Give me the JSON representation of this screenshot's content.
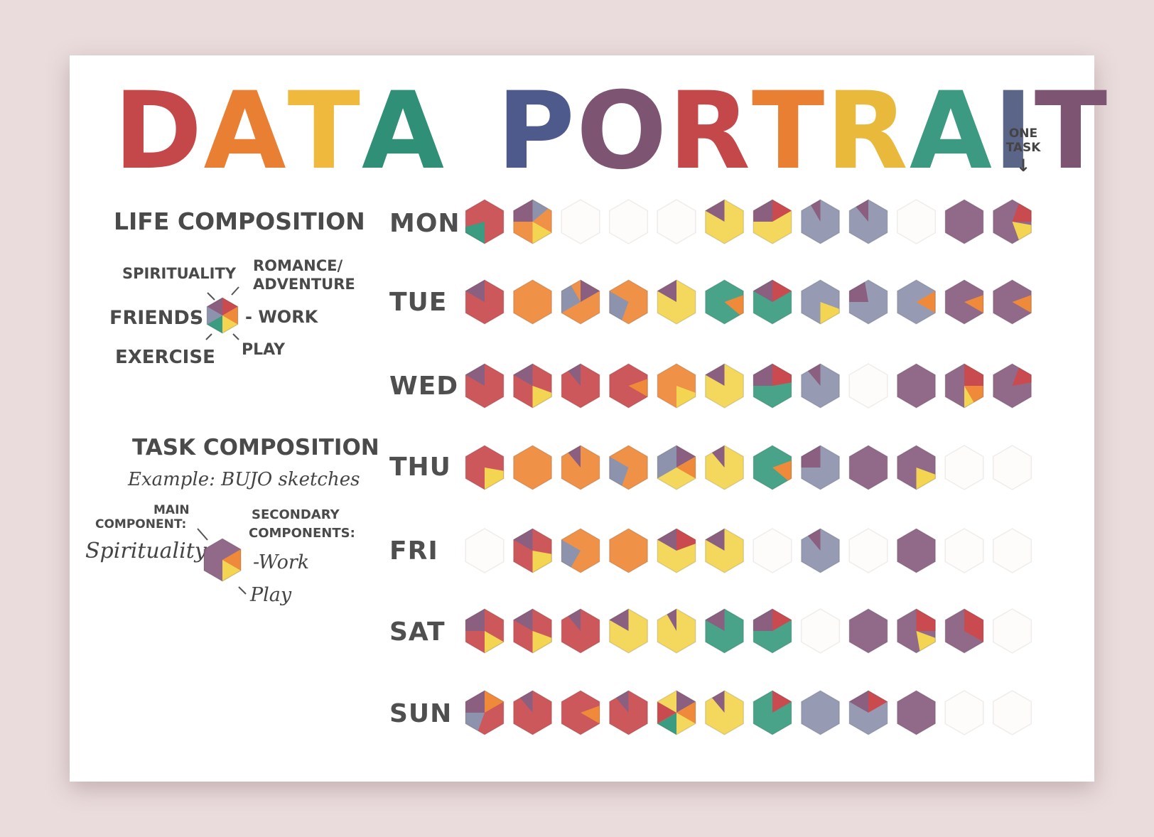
{
  "title": {
    "words": [
      {
        "text": "DATA",
        "colors": [
          "#c4474a",
          "#e97f33",
          "#eeb93c",
          "#2f8f77"
        ]
      },
      {
        "text": "PORTRAIT",
        "colors": [
          "#4e5a8c",
          "#7d5572",
          "#c4474a",
          "#e97f33",
          "#e8b93a",
          "#3c9a82",
          "#5b6588",
          "#7d5572"
        ]
      }
    ]
  },
  "categories": {
    "romance": {
      "label": "ROMANCE/ ADVENTURE",
      "color": "#c94b4f"
    },
    "work": {
      "label": "WORK",
      "color": "#ee8a3a"
    },
    "play": {
      "label": "PLAY",
      "color": "#f3d551"
    },
    "exercise": {
      "label": "EXERCISE",
      "color": "#3a9c80"
    },
    "friends": {
      "label": "FRIENDS",
      "color": "#8e93ad"
    },
    "spirituality": {
      "label": "SPIRITUALITY",
      "color": "#8a5f80"
    }
  },
  "life_composition": {
    "heading": "LIFE COMPOSITION",
    "labels": {
      "spirituality": "SPIRITUALITY",
      "romance": "ROMANCE/",
      "romance2": "ADVENTURE",
      "friends": "FRIENDS -",
      "work": "- WORK",
      "exercise": "EXERCISE",
      "play": "PLAY"
    }
  },
  "task_composition": {
    "heading": "TASK COMPOSITION",
    "example": "Example: BUJO sketches",
    "main_label_1": "MAIN",
    "main_label_2": "COMPONENT:",
    "main_value": "Spirituality",
    "secondary_label_1": "SECONDARY",
    "secondary_label_2": "COMPONENTS:",
    "secondary_1": "-Work",
    "secondary_2": "Play"
  },
  "one_task_label": "ONE TASK",
  "one_task_arrow": "↓",
  "days": [
    "MON",
    "TUE",
    "WED",
    "THU",
    "FRI",
    "SAT",
    "SUN"
  ],
  "grid": [
    [
      {
        "base": "romance",
        "wedges": [
          {
            "cat": "exercise",
            "start": 180,
            "end": 255
          }
        ]
      },
      {
        "base": "work",
        "wedges": [
          {
            "cat": "spirituality",
            "start": 270,
            "end": 360
          },
          {
            "cat": "friends",
            "start": 0,
            "end": 50
          },
          {
            "cat": "play",
            "start": 120,
            "end": 180
          }
        ]
      },
      null,
      null,
      null,
      {
        "base": "play",
        "wedges": [
          {
            "cat": "spirituality",
            "start": 300,
            "end": 360
          }
        ]
      },
      {
        "base": "play",
        "wedges": [
          {
            "cat": "spirituality",
            "start": 270,
            "end": 360
          },
          {
            "cat": "romance",
            "start": 0,
            "end": 60
          }
        ]
      },
      {
        "base": "friends",
        "wedges": [
          {
            "cat": "spirituality",
            "start": 330,
            "end": 360
          }
        ]
      },
      {
        "base": "friends",
        "wedges": [
          {
            "cat": "spirituality",
            "start": 320,
            "end": 360
          }
        ]
      },
      null,
      {
        "base": "spirituality",
        "wedges": []
      },
      {
        "base": "spirituality",
        "wedges": [
          {
            "cat": "romance",
            "start": 20,
            "end": 90
          },
          {
            "cat": "play",
            "start": 100,
            "end": 160
          }
        ]
      }
    ],
    [
      {
        "base": "romance",
        "wedges": [
          {
            "cat": "spirituality",
            "start": 300,
            "end": 360
          }
        ]
      },
      {
        "base": "work",
        "wedges": []
      },
      {
        "base": "work",
        "wedges": [
          {
            "cat": "spirituality",
            "start": 0,
            "end": 60
          },
          {
            "cat": "friends",
            "start": 240,
            "end": 330
          }
        ]
      },
      {
        "base": "work",
        "wedges": [
          {
            "cat": "friends",
            "start": 200,
            "end": 300
          }
        ]
      },
      {
        "base": "play",
        "wedges": [
          {
            "cat": "spirituality",
            "start": 300,
            "end": 360
          }
        ]
      },
      {
        "base": "exercise",
        "wedges": [
          {
            "cat": "work",
            "start": 70,
            "end": 130
          }
        ]
      },
      {
        "base": "exercise",
        "wedges": [
          {
            "cat": "spirituality",
            "start": 300,
            "end": 360
          },
          {
            "cat": "romance",
            "start": 0,
            "end": 60
          }
        ]
      },
      {
        "base": "friends",
        "wedges": [
          {
            "cat": "play",
            "start": 110,
            "end": 180
          }
        ]
      },
      {
        "base": "friends",
        "wedges": [
          {
            "cat": "spirituality",
            "start": 270,
            "end": 350
          }
        ]
      },
      {
        "base": "friends",
        "wedges": [
          {
            "cat": "work",
            "start": 60,
            "end": 120
          }
        ]
      },
      {
        "base": "spirituality",
        "wedges": [
          {
            "cat": "work",
            "start": 70,
            "end": 120
          }
        ]
      },
      {
        "base": "spirituality",
        "wedges": [
          {
            "cat": "work",
            "start": 70,
            "end": 120
          }
        ]
      }
    ],
    [
      {
        "base": "romance",
        "wedges": [
          {
            "cat": "spirituality",
            "start": 300,
            "end": 360
          }
        ]
      },
      {
        "base": "romance",
        "wedges": [
          {
            "cat": "spirituality",
            "start": 300,
            "end": 360
          },
          {
            "cat": "play",
            "start": 110,
            "end": 180
          }
        ]
      },
      {
        "base": "romance",
        "wedges": [
          {
            "cat": "spirituality",
            "start": 320,
            "end": 360
          }
        ]
      },
      {
        "base": "romance",
        "wedges": [
          {
            "cat": "work",
            "start": 70,
            "end": 120
          }
        ]
      },
      {
        "base": "work",
        "wedges": [
          {
            "cat": "play",
            "start": 110,
            "end": 180
          }
        ]
      },
      {
        "base": "play",
        "wedges": [
          {
            "cat": "spirituality",
            "start": 300,
            "end": 360
          }
        ]
      },
      {
        "base": "exercise",
        "wedges": [
          {
            "cat": "spirituality",
            "start": 270,
            "end": 360
          },
          {
            "cat": "romance",
            "start": 0,
            "end": 80
          }
        ]
      },
      {
        "base": "friends",
        "wedges": [
          {
            "cat": "spirituality",
            "start": 320,
            "end": 360
          }
        ]
      },
      null,
      {
        "base": "spirituality",
        "wedges": []
      },
      {
        "base": "spirituality",
        "wedges": [
          {
            "cat": "romance",
            "start": 0,
            "end": 90
          },
          {
            "cat": "work",
            "start": 90,
            "end": 150
          },
          {
            "cat": "play",
            "start": 150,
            "end": 180
          }
        ]
      },
      {
        "base": "spirituality",
        "wedges": [
          {
            "cat": "romance",
            "start": 20,
            "end": 80
          }
        ]
      }
    ],
    [
      {
        "base": "romance",
        "wedges": [
          {
            "cat": "play",
            "start": 100,
            "end": 180
          }
        ]
      },
      {
        "base": "work",
        "wedges": []
      },
      {
        "base": "work",
        "wedges": [
          {
            "cat": "spirituality",
            "start": 320,
            "end": 360
          }
        ]
      },
      {
        "base": "work",
        "wedges": [
          {
            "cat": "friends",
            "start": 200,
            "end": 300
          }
        ]
      },
      {
        "base": "play",
        "wedges": [
          {
            "cat": "friends",
            "start": 240,
            "end": 360
          },
          {
            "cat": "spirituality",
            "start": 0,
            "end": 60
          },
          {
            "cat": "work",
            "start": 60,
            "end": 120
          }
        ]
      },
      {
        "base": "play",
        "wedges": [
          {
            "cat": "spirituality",
            "start": 320,
            "end": 360
          }
        ]
      },
      {
        "base": "exercise",
        "wedges": [
          {
            "cat": "work",
            "start": 70,
            "end": 130
          }
        ]
      },
      {
        "base": "friends",
        "wedges": [
          {
            "cat": "spirituality",
            "start": 270,
            "end": 360
          }
        ]
      },
      {
        "base": "spirituality",
        "wedges": []
      },
      {
        "base": "spirituality",
        "wedges": [
          {
            "cat": "play",
            "start": 110,
            "end": 180
          }
        ]
      },
      null,
      null
    ],
    [
      null,
      {
        "base": "romance",
        "wedges": [
          {
            "cat": "spirituality",
            "start": 300,
            "end": 360
          },
          {
            "cat": "play",
            "start": 100,
            "end": 180
          }
        ]
      },
      {
        "base": "work",
        "wedges": [
          {
            "cat": "friends",
            "start": 210,
            "end": 300
          }
        ]
      },
      {
        "base": "work",
        "wedges": []
      },
      {
        "base": "play",
        "wedges": [
          {
            "cat": "spirituality",
            "start": 300,
            "end": 360
          },
          {
            "cat": "romance",
            "start": 0,
            "end": 70
          }
        ]
      },
      {
        "base": "play",
        "wedges": [
          {
            "cat": "spirituality",
            "start": 300,
            "end": 360
          }
        ]
      },
      null,
      {
        "base": "friends",
        "wedges": [
          {
            "cat": "spirituality",
            "start": 320,
            "end": 360
          }
        ]
      },
      null,
      {
        "base": "spirituality",
        "wedges": []
      },
      null,
      null
    ],
    [
      {
        "base": "romance",
        "wedges": [
          {
            "cat": "spirituality",
            "start": 270,
            "end": 360
          },
          {
            "cat": "play",
            "start": 120,
            "end": 180
          }
        ]
      },
      {
        "base": "romance",
        "wedges": [
          {
            "cat": "spirituality",
            "start": 300,
            "end": 360
          },
          {
            "cat": "play",
            "start": 110,
            "end": 180
          }
        ]
      },
      {
        "base": "romance",
        "wedges": [
          {
            "cat": "spirituality",
            "start": 320,
            "end": 360
          }
        ]
      },
      {
        "base": "play",
        "wedges": [
          {
            "cat": "spirituality",
            "start": 300,
            "end": 360
          }
        ]
      },
      {
        "base": "play",
        "wedges": [
          {
            "cat": "spirituality",
            "start": 330,
            "end": 360
          }
        ]
      },
      {
        "base": "exercise",
        "wedges": [
          {
            "cat": "spirituality",
            "start": 300,
            "end": 360
          }
        ]
      },
      {
        "base": "exercise",
        "wedges": [
          {
            "cat": "spirituality",
            "start": 270,
            "end": 360
          },
          {
            "cat": "romance",
            "start": 0,
            "end": 60
          }
        ]
      },
      null,
      {
        "base": "spirituality",
        "wedges": []
      },
      {
        "base": "spirituality",
        "wedges": [
          {
            "cat": "romance",
            "start": 0,
            "end": 90
          },
          {
            "cat": "play",
            "start": 110,
            "end": 170
          }
        ]
      },
      {
        "base": "spirituality",
        "wedges": [
          {
            "cat": "romance",
            "start": 0,
            "end": 120
          }
        ]
      },
      null
    ],
    [
      {
        "base": "romance",
        "wedges": [
          {
            "cat": "spirituality",
            "start": 270,
            "end": 360
          },
          {
            "cat": "work",
            "start": 0,
            "end": 60
          },
          {
            "cat": "friends",
            "start": 200,
            "end": 270
          }
        ]
      },
      {
        "base": "romance",
        "wedges": [
          {
            "cat": "spirituality",
            "start": 320,
            "end": 360
          }
        ]
      },
      {
        "base": "romance",
        "wedges": [
          {
            "cat": "work",
            "start": 70,
            "end": 120
          }
        ]
      },
      {
        "base": "romance",
        "wedges": [
          {
            "cat": "spirituality",
            "start": 320,
            "end": 360
          }
        ]
      },
      {
        "base": "play",
        "wedges": [
          {
            "cat": "spirituality",
            "start": 0,
            "end": 60
          },
          {
            "cat": "work",
            "start": 60,
            "end": 120
          },
          {
            "cat": "exercise",
            "start": 180,
            "end": 240
          },
          {
            "cat": "romance",
            "start": 240,
            "end": 300
          }
        ]
      },
      {
        "base": "play",
        "wedges": [
          {
            "cat": "spirituality",
            "start": 320,
            "end": 360
          }
        ]
      },
      {
        "base": "exercise",
        "wedges": [
          {
            "cat": "romance",
            "start": 0,
            "end": 60
          }
        ]
      },
      {
        "base": "friends",
        "wedges": []
      },
      {
        "base": "friends",
        "wedges": [
          {
            "cat": "spirituality",
            "start": 300,
            "end": 360
          },
          {
            "cat": "romance",
            "start": 0,
            "end": 60
          }
        ]
      },
      {
        "base": "spirituality",
        "wedges": []
      },
      null,
      null
    ]
  ]
}
